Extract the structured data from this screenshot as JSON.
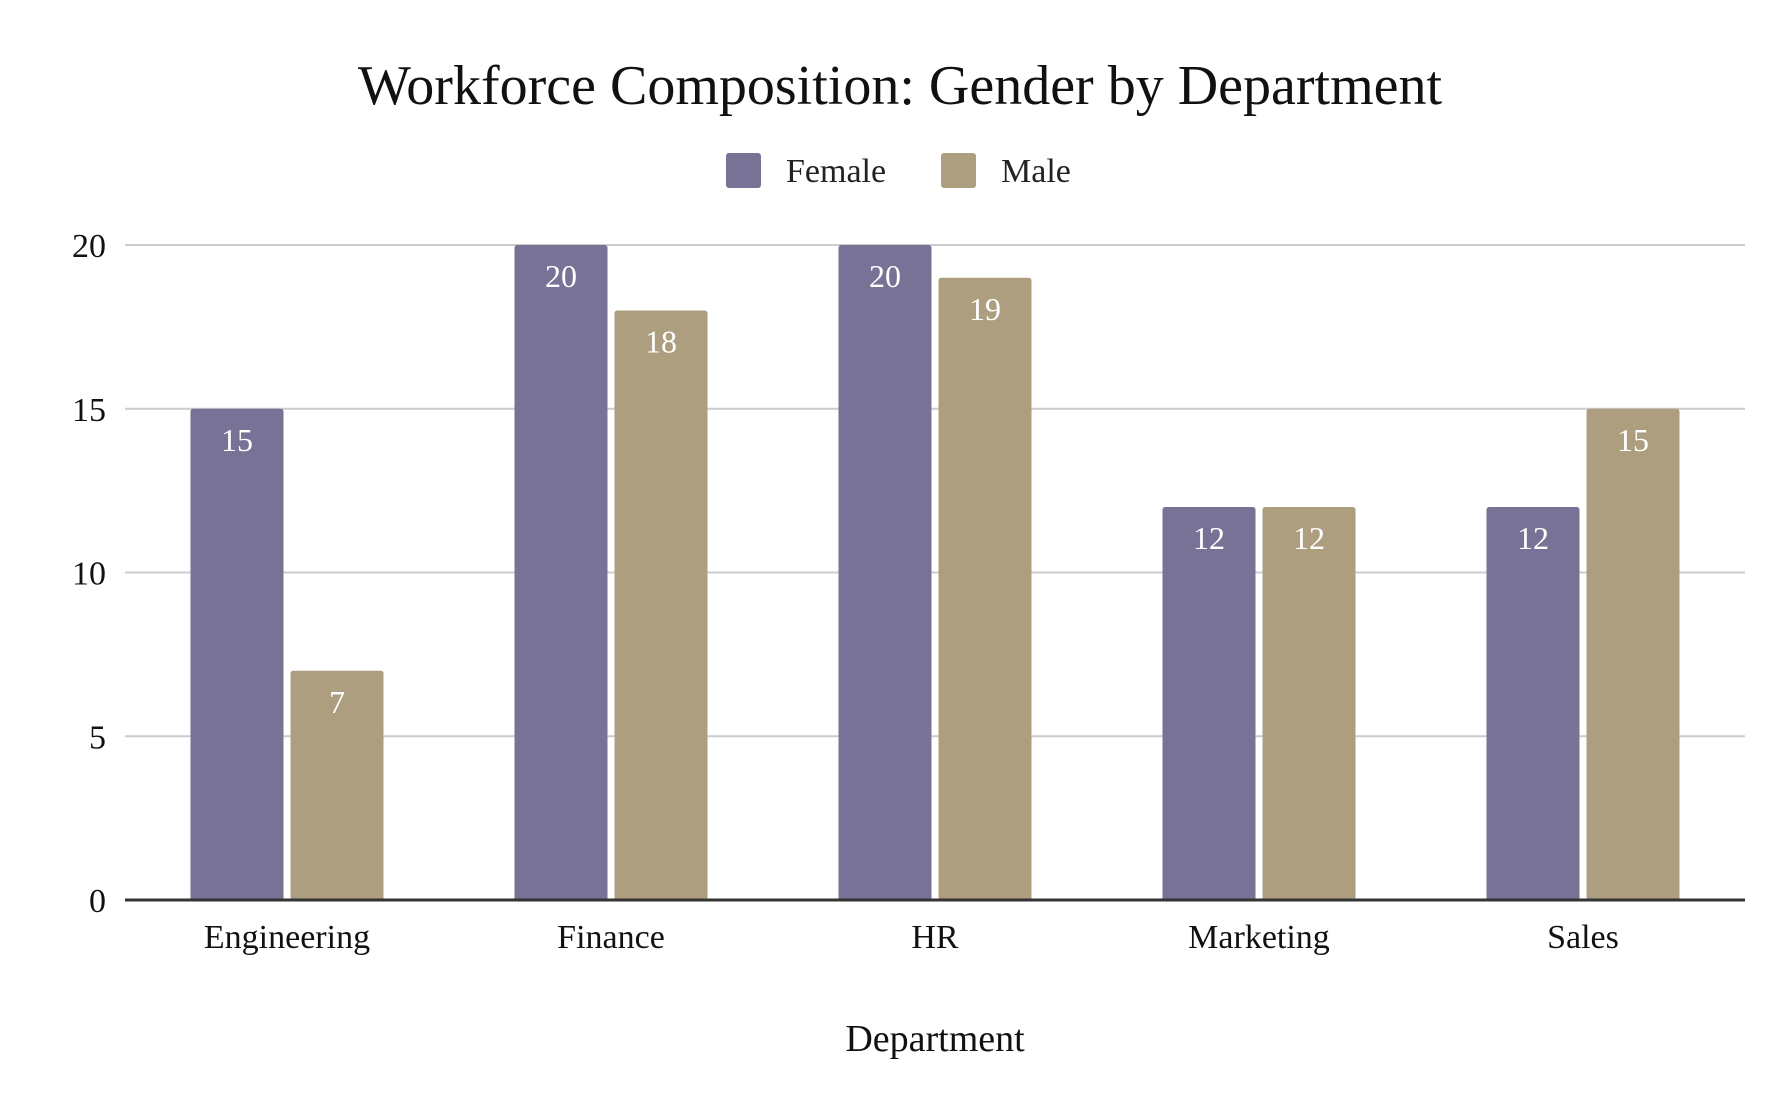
{
  "chart_data": {
    "type": "bar",
    "title": "Workforce Composition: Gender by Department",
    "xlabel": "Department",
    "ylabel": "",
    "categories": [
      "Engineering",
      "Finance",
      "HR",
      "Marketing",
      "Sales"
    ],
    "series": [
      {
        "name": "Female",
        "color": "#787296",
        "values": [
          15,
          20,
          20,
          12,
          12
        ]
      },
      {
        "name": "Male",
        "color": "#ae9e80",
        "values": [
          7,
          18,
          19,
          12,
          15
        ]
      }
    ],
    "ylim": [
      0,
      20
    ],
    "yticks": [
      "0",
      "5",
      "10",
      "15",
      "20"
    ],
    "grid": true,
    "legend_position": "top-center",
    "data_labels": true,
    "colors": {
      "grid": "#cccccc",
      "axis": "#333333"
    }
  }
}
